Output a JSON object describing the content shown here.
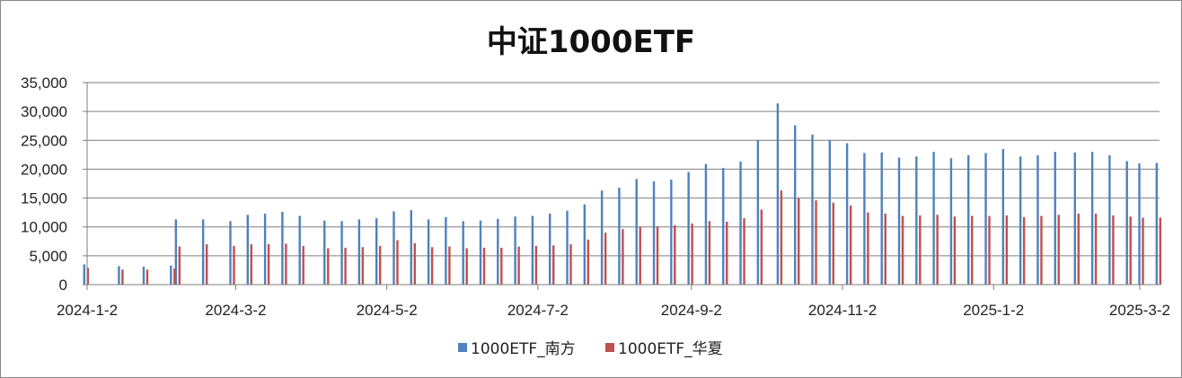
{
  "chart_data": {
    "type": "bar",
    "title": "中证1000ETF",
    "xlabel": "",
    "ylabel": "",
    "ylim": [
      0,
      35000
    ],
    "yticks": [
      0,
      5000,
      10000,
      15000,
      20000,
      25000,
      30000,
      35000
    ],
    "ytick_labels": [
      "0",
      "5,000",
      "10,000",
      "15,000",
      "20,000",
      "25,000",
      "30,000",
      "35,000"
    ],
    "x_tick_labels": [
      "2024-1-2",
      "2024-3-2",
      "2024-5-2",
      "2024-7-2",
      "2024-9-2",
      "2024-11-2",
      "2025-1-2",
      "2025-3-2"
    ],
    "x_range": [
      "2024-01-02",
      "2025-03-10"
    ],
    "grid": true,
    "legend_position": "bottom",
    "colors": {
      "southern": "#4f81bd",
      "huaxia": "#c0504d",
      "grid": "#7f7f7f",
      "axis": "#7f7f7f"
    },
    "series": [
      {
        "name": "1000ETF_南方",
        "color": "#4f81bd",
        "points": [
          [
            "2024-01-02",
            3500
          ],
          [
            "2024-01-16",
            3200
          ],
          [
            "2024-01-26",
            3100
          ],
          [
            "2024-02-06",
            3300
          ],
          [
            "2024-02-08",
            11300
          ],
          [
            "2024-02-19",
            11300
          ],
          [
            "2024-03-01",
            11000
          ],
          [
            "2024-03-08",
            12100
          ],
          [
            "2024-03-15",
            12300
          ],
          [
            "2024-03-22",
            12600
          ],
          [
            "2024-03-29",
            11900
          ],
          [
            "2024-04-08",
            11100
          ],
          [
            "2024-04-15",
            11000
          ],
          [
            "2024-04-22",
            11300
          ],
          [
            "2024-04-29",
            11500
          ],
          [
            "2024-05-06",
            12700
          ],
          [
            "2024-05-13",
            12900
          ],
          [
            "2024-05-20",
            11300
          ],
          [
            "2024-05-27",
            11700
          ],
          [
            "2024-06-03",
            11000
          ],
          [
            "2024-06-10",
            11100
          ],
          [
            "2024-06-17",
            11400
          ],
          [
            "2024-06-24",
            11800
          ],
          [
            "2024-07-01",
            11900
          ],
          [
            "2024-07-08",
            12300
          ],
          [
            "2024-07-15",
            12800
          ],
          [
            "2024-07-22",
            13900
          ],
          [
            "2024-07-29",
            16300
          ],
          [
            "2024-08-05",
            16800
          ],
          [
            "2024-08-12",
            18300
          ],
          [
            "2024-08-19",
            17900
          ],
          [
            "2024-08-26",
            18200
          ],
          [
            "2024-09-02",
            19500
          ],
          [
            "2024-09-09",
            20900
          ],
          [
            "2024-09-16",
            20200
          ],
          [
            "2024-09-23",
            21300
          ],
          [
            "2024-09-30",
            25000
          ],
          [
            "2024-10-08",
            31400
          ],
          [
            "2024-10-15",
            27600
          ],
          [
            "2024-10-22",
            26000
          ],
          [
            "2024-10-29",
            25000
          ],
          [
            "2024-11-05",
            24500
          ],
          [
            "2024-11-12",
            22800
          ],
          [
            "2024-11-19",
            22900
          ],
          [
            "2024-11-26",
            22000
          ],
          [
            "2024-12-03",
            22200
          ],
          [
            "2024-12-10",
            23000
          ],
          [
            "2024-12-17",
            21900
          ],
          [
            "2024-12-24",
            22400
          ],
          [
            "2024-12-31",
            22800
          ],
          [
            "2025-01-07",
            23500
          ],
          [
            "2025-01-14",
            22200
          ],
          [
            "2025-01-21",
            22400
          ],
          [
            "2025-01-28",
            23000
          ],
          [
            "2025-02-05",
            22900
          ],
          [
            "2025-02-12",
            23000
          ],
          [
            "2025-02-19",
            22400
          ],
          [
            "2025-02-26",
            21400
          ],
          [
            "2025-03-03",
            21000
          ],
          [
            "2025-03-10",
            21100
          ]
        ]
      },
      {
        "name": "1000ETF_华夏",
        "color": "#c0504d",
        "points": [
          [
            "2024-01-02",
            2900
          ],
          [
            "2024-01-16",
            2600
          ],
          [
            "2024-01-26",
            2600
          ],
          [
            "2024-02-06",
            2800
          ],
          [
            "2024-02-08",
            6600
          ],
          [
            "2024-02-19",
            7000
          ],
          [
            "2024-03-01",
            6700
          ],
          [
            "2024-03-08",
            7000
          ],
          [
            "2024-03-15",
            7000
          ],
          [
            "2024-03-22",
            7100
          ],
          [
            "2024-03-29",
            6700
          ],
          [
            "2024-04-08",
            6300
          ],
          [
            "2024-04-15",
            6400
          ],
          [
            "2024-04-22",
            6500
          ],
          [
            "2024-04-29",
            6700
          ],
          [
            "2024-05-06",
            7700
          ],
          [
            "2024-05-13",
            7200
          ],
          [
            "2024-05-20",
            6500
          ],
          [
            "2024-05-27",
            6600
          ],
          [
            "2024-06-03",
            6300
          ],
          [
            "2024-06-10",
            6400
          ],
          [
            "2024-06-17",
            6400
          ],
          [
            "2024-06-24",
            6600
          ],
          [
            "2024-07-01",
            6700
          ],
          [
            "2024-07-08",
            6800
          ],
          [
            "2024-07-15",
            7000
          ],
          [
            "2024-07-22",
            7800
          ],
          [
            "2024-07-29",
            9000
          ],
          [
            "2024-08-05",
            9600
          ],
          [
            "2024-08-12",
            10000
          ],
          [
            "2024-08-19",
            10100
          ],
          [
            "2024-08-26",
            10300
          ],
          [
            "2024-09-02",
            10600
          ],
          [
            "2024-09-09",
            11000
          ],
          [
            "2024-09-16",
            10900
          ],
          [
            "2024-09-23",
            11500
          ],
          [
            "2024-09-30",
            13000
          ],
          [
            "2024-10-08",
            16300
          ],
          [
            "2024-10-15",
            15000
          ],
          [
            "2024-10-22",
            14600
          ],
          [
            "2024-10-29",
            14200
          ],
          [
            "2024-11-05",
            13700
          ],
          [
            "2024-11-12",
            12500
          ],
          [
            "2024-11-19",
            12300
          ],
          [
            "2024-11-26",
            11900
          ],
          [
            "2024-12-03",
            12000
          ],
          [
            "2024-12-10",
            12100
          ],
          [
            "2024-12-17",
            11800
          ],
          [
            "2024-12-24",
            11900
          ],
          [
            "2024-12-31",
            11900
          ],
          [
            "2025-01-07",
            12000
          ],
          [
            "2025-01-14",
            11700
          ],
          [
            "2025-01-21",
            11900
          ],
          [
            "2025-01-28",
            12100
          ],
          [
            "2025-02-05",
            12300
          ],
          [
            "2025-02-12",
            12300
          ],
          [
            "2025-02-19",
            12000
          ],
          [
            "2025-02-26",
            11800
          ],
          [
            "2025-03-03",
            11600
          ],
          [
            "2025-03-10",
            11600
          ]
        ]
      }
    ]
  }
}
